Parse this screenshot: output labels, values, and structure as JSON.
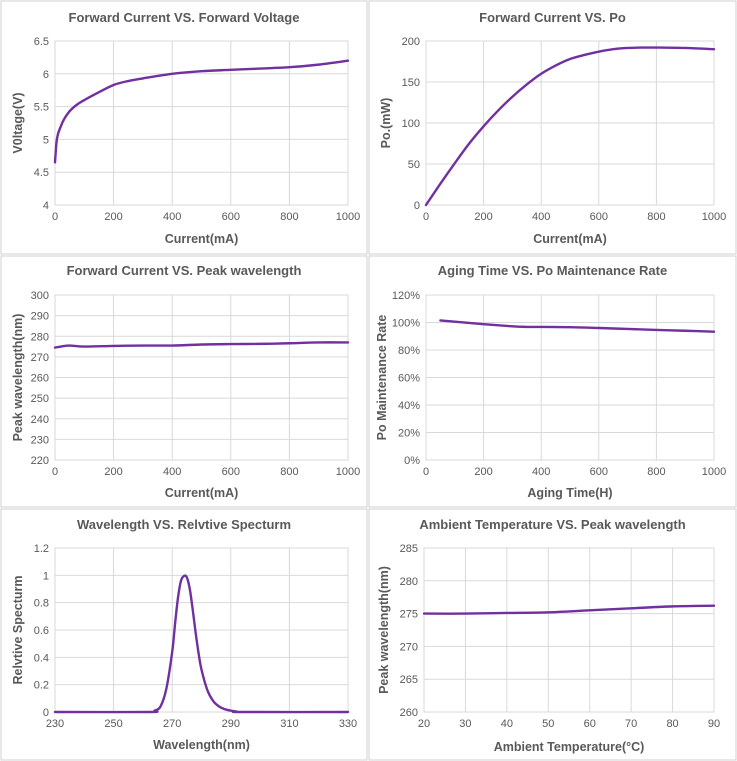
{
  "series_color": "#7030a0",
  "chart_data": [
    {
      "type": "line",
      "title": "Forward Current VS. Forward Voltage",
      "xlabel": "Current(mA)",
      "ylabel": "V0ltage(V)",
      "xlim": [
        0,
        1000
      ],
      "ylim": [
        4,
        6.5
      ],
      "xticks": [
        "0",
        "200",
        "400",
        "600",
        "800",
        "1000"
      ],
      "yticks": [
        "4",
        "4.5",
        "5",
        "5.5",
        "6",
        "6.5"
      ],
      "x": [
        0,
        5,
        10,
        20,
        30,
        50,
        75,
        100,
        150,
        200,
        250,
        300,
        400,
        500,
        600,
        700,
        800,
        900,
        1000
      ],
      "y": [
        4.65,
        4.95,
        5.08,
        5.2,
        5.3,
        5.43,
        5.53,
        5.6,
        5.72,
        5.83,
        5.89,
        5.93,
        6.0,
        6.04,
        6.06,
        6.08,
        6.1,
        6.14,
        6.2
      ]
    },
    {
      "type": "line",
      "title": "Forward Current VS. Po",
      "xlabel": "Current(mA)",
      "ylabel": "Po.(mW)",
      "xlim": [
        0,
        1000
      ],
      "ylim": [
        0,
        200
      ],
      "xticks": [
        "0",
        "200",
        "400",
        "600",
        "800",
        "1000"
      ],
      "yticks": [
        "0",
        "50",
        "100",
        "150",
        "200"
      ],
      "x": [
        0,
        50,
        100,
        150,
        200,
        250,
        300,
        350,
        400,
        450,
        500,
        550,
        600,
        650,
        700,
        750,
        800,
        900,
        1000
      ],
      "y": [
        0,
        26,
        51,
        75,
        96,
        115,
        132,
        147,
        160,
        170,
        178,
        183,
        187,
        190,
        191.5,
        192,
        192,
        191.5,
        190
      ]
    },
    {
      "type": "line",
      "title": "Forward Current VS. Peak wavelength",
      "xlabel": "Current(mA)",
      "ylabel": "Peak wavelength(nm)",
      "xlim": [
        0,
        1000
      ],
      "ylim": [
        220,
        300
      ],
      "xticks": [
        "0",
        "200",
        "400",
        "600",
        "800",
        "1000"
      ],
      "yticks": [
        "220",
        "230",
        "240",
        "250",
        "260",
        "270",
        "280",
        "290",
        "300"
      ],
      "x": [
        0,
        20,
        50,
        100,
        200,
        300,
        400,
        500,
        600,
        700,
        800,
        900,
        1000
      ],
      "y": [
        274.5,
        275,
        275.5,
        275,
        275.3,
        275.5,
        275.5,
        276,
        276.2,
        276.3,
        276.6,
        277,
        277
      ]
    },
    {
      "type": "line",
      "title": "Aging Time VS. Po Maintenance Rate",
      "xlabel": "Aging Time(H)",
      "ylabel": "Po Maintenance Rate",
      "xlim": [
        0,
        1000
      ],
      "ylim": [
        0,
        120
      ],
      "xticks": [
        "0",
        "200",
        "400",
        "600",
        "800",
        "1000"
      ],
      "yticks": [
        "0%",
        "20%",
        "40%",
        "60%",
        "80%",
        "100%",
        "120%"
      ],
      "x": [
        50,
        100,
        200,
        300,
        350,
        400,
        500,
        600,
        700,
        800,
        900,
        1000
      ],
      "y": [
        101.5,
        100.6,
        98.8,
        97.2,
        96.8,
        96.8,
        96.6,
        96,
        95.3,
        94.6,
        94,
        93.3
      ]
    },
    {
      "type": "line",
      "title": "Wavelength VS. Relvtive Specturm",
      "xlabel": "Wavelength(nm)",
      "ylabel": "Relvtive Specturm",
      "xlim": [
        230,
        330
      ],
      "ylim": [
        0,
        1.2
      ],
      "xticks": [
        "230",
        "250",
        "270",
        "290",
        "310",
        "330"
      ],
      "yticks": [
        "0",
        "0.2",
        "0.4",
        "0.6",
        "0.8",
        "1",
        "1.2"
      ],
      "x": [
        230,
        262,
        264,
        266,
        268,
        270,
        271,
        272,
        273,
        274,
        275,
        276,
        277,
        278,
        279,
        280,
        282,
        284,
        286,
        288,
        290,
        292,
        294,
        330
      ],
      "y": [
        0,
        0,
        0.01,
        0.04,
        0.17,
        0.44,
        0.65,
        0.84,
        0.96,
        0.995,
        0.985,
        0.9,
        0.75,
        0.58,
        0.43,
        0.31,
        0.16,
        0.08,
        0.04,
        0.02,
        0.01,
        0.003,
        0,
        0
      ]
    },
    {
      "type": "line",
      "title": "Ambient Temperature VS. Peak wavelength",
      "xlabel": "Ambient Temperature(°C)",
      "ylabel": "Peak wavelength(nm)",
      "xlim": [
        20,
        90
      ],
      "ylim": [
        260,
        285
      ],
      "xticks": [
        "20",
        "30",
        "40",
        "50",
        "60",
        "70",
        "80",
        "90"
      ],
      "yticks": [
        "260",
        "265",
        "270",
        "275",
        "280",
        "285"
      ],
      "x": [
        20,
        30,
        40,
        50,
        60,
        70,
        80,
        90
      ],
      "y": [
        275,
        275,
        275.1,
        275.2,
        275.5,
        275.8,
        276.1,
        276.2
      ]
    }
  ]
}
